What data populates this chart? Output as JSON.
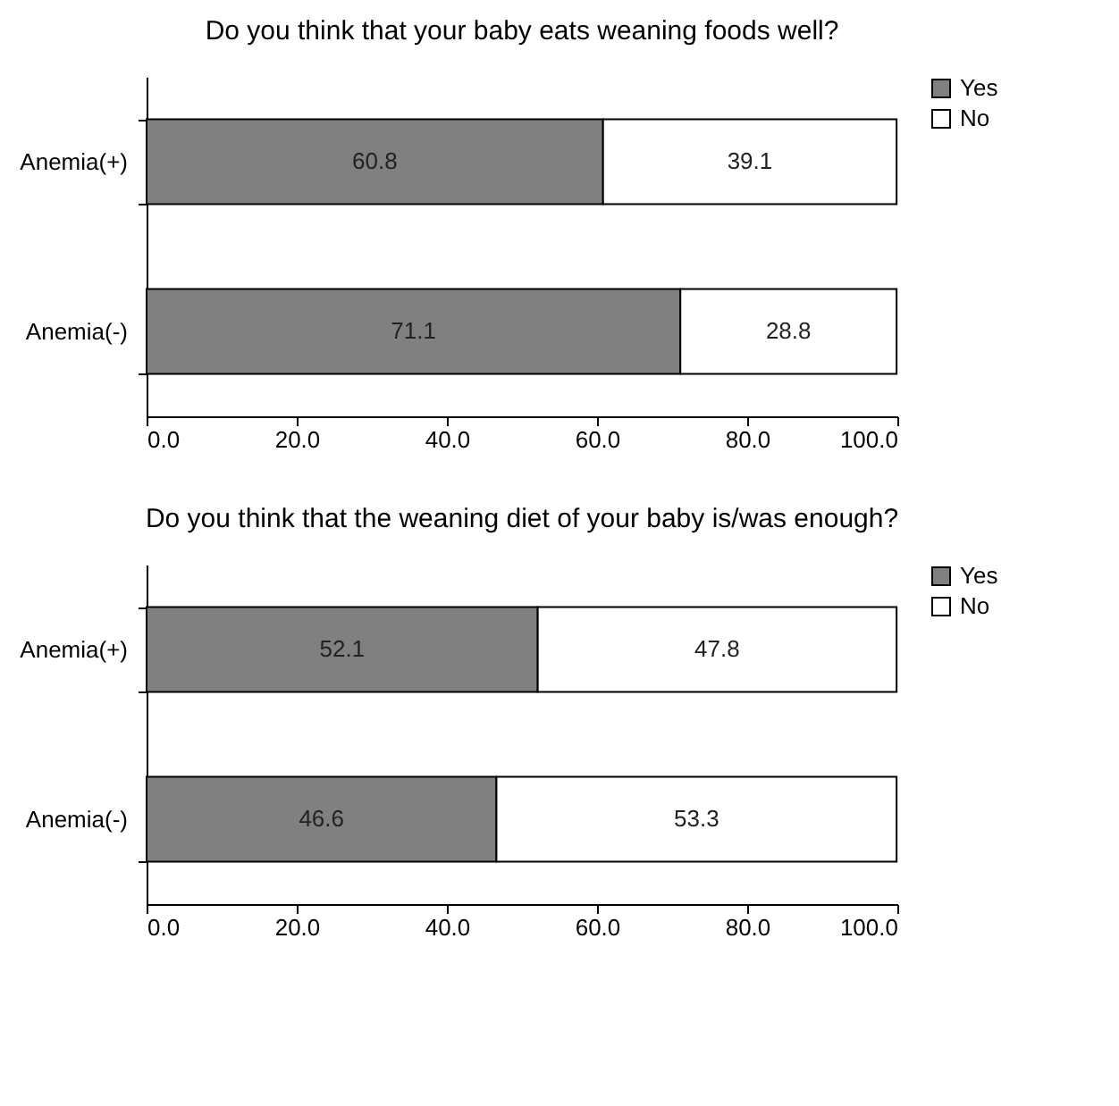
{
  "chart_data": [
    {
      "type": "bar",
      "orientation": "horizontal",
      "stacked": true,
      "title": "Do you think that your baby eats weaning foods well?",
      "categories": [
        "Anemia(+)",
        "Anemia(-)"
      ],
      "series": [
        {
          "name": "Yes",
          "color": "#808080",
          "values": [
            60.8,
            71.1
          ]
        },
        {
          "name": "No",
          "color": "#ffffff",
          "values": [
            39.1,
            28.8
          ]
        }
      ],
      "xlim": [
        0,
        100
      ],
      "xticks": [
        {
          "value": 0,
          "label": "0.0"
        },
        {
          "value": 20,
          "label": "20.0"
        },
        {
          "value": 40,
          "label": "40.0"
        },
        {
          "value": 60,
          "label": "60.0"
        },
        {
          "value": 80,
          "label": "80.0"
        },
        {
          "value": 100,
          "label": "100.0"
        }
      ],
      "data_labels": true,
      "legend": "right",
      "grid": false
    },
    {
      "type": "bar",
      "orientation": "horizontal",
      "stacked": true,
      "title": "Do you think that the weaning diet of your baby is/was enough?",
      "categories": [
        "Anemia(+)",
        "Anemia(-)"
      ],
      "series": [
        {
          "name": "Yes",
          "color": "#808080",
          "values": [
            52.1,
            46.6
          ]
        },
        {
          "name": "No",
          "color": "#ffffff",
          "values": [
            47.8,
            53.3
          ]
        }
      ],
      "xlim": [
        0,
        100
      ],
      "xticks": [
        {
          "value": 0,
          "label": "0.0"
        },
        {
          "value": 20,
          "label": "20.0"
        },
        {
          "value": 40,
          "label": "40.0"
        },
        {
          "value": 60,
          "label": "60.0"
        },
        {
          "value": 80,
          "label": "80.0"
        },
        {
          "value": 100,
          "label": "100.0"
        }
      ],
      "data_labels": true,
      "legend": "right",
      "grid": false
    }
  ]
}
